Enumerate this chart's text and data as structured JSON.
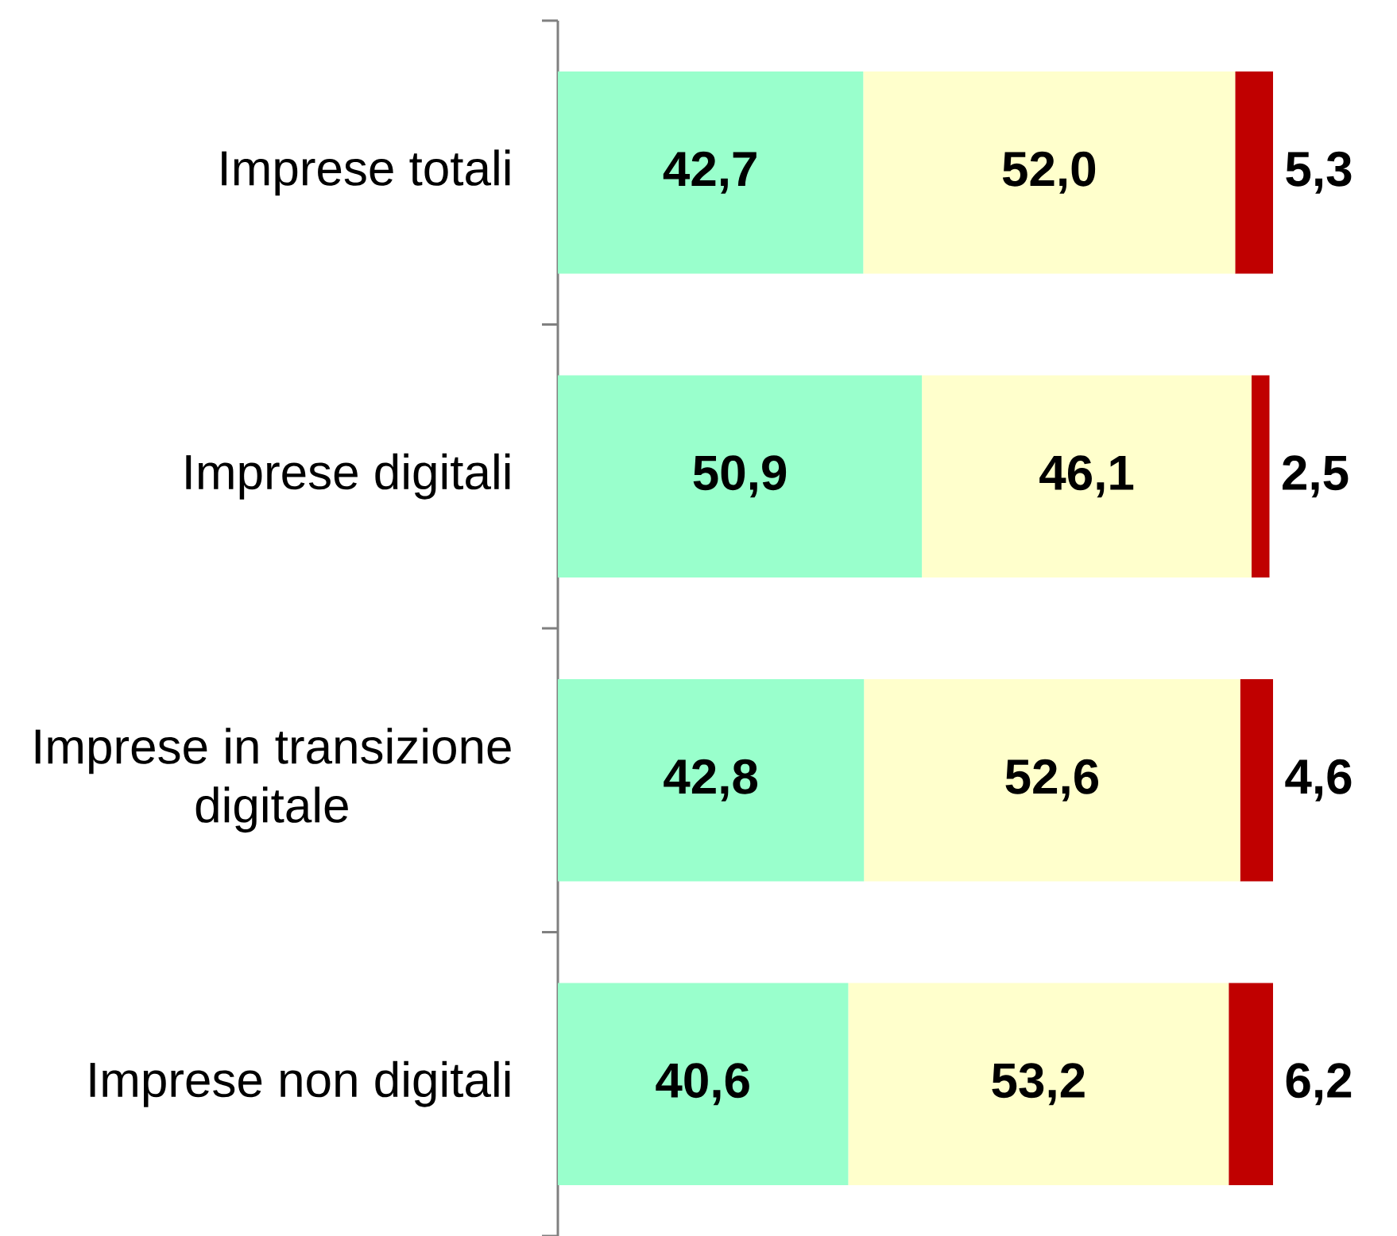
{
  "chart_data": {
    "type": "bar",
    "orientation": "horizontal",
    "stacked": true,
    "categories": [
      "Imprese totali",
      "Imprese digitali",
      "Imprese in transizione digitale",
      "Imprese non digitali"
    ],
    "series": [
      {
        "color": "#99ffcc",
        "values": [
          42.7,
          50.9,
          42.8,
          40.6
        ],
        "value_labels": [
          "42,7",
          "50,9",
          "42,8",
          "40,6"
        ]
      },
      {
        "color": "#ffffcc",
        "values": [
          52.0,
          46.1,
          52.6,
          53.2
        ],
        "value_labels": [
          "52,0",
          "46,1",
          "52,6",
          "53,2"
        ]
      },
      {
        "color": "#c00000",
        "values": [
          5.3,
          2.5,
          4.6,
          6.2
        ],
        "value_labels": [
          "5,3",
          "2,5",
          "4,6",
          "6,2"
        ]
      }
    ],
    "xlim": [
      0,
      100
    ],
    "tick_labels": "y"
  }
}
